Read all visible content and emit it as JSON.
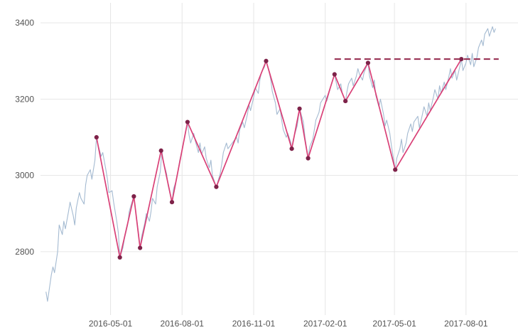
{
  "chart_data": {
    "type": "line",
    "title": "",
    "xlabel": "",
    "ylabel": "",
    "grid": true,
    "legend": "none",
    "x_domain": [
      "2016-02-01",
      "2017-10-05"
    ],
    "y_domain": [
      2645,
      3445
    ],
    "x_ticks": [
      "2016-05-01",
      "2016-08-01",
      "2016-11-01",
      "2017-02-01",
      "2017-05-01",
      "2017-08-01"
    ],
    "y_ticks": [
      2800,
      3000,
      3200,
      3400
    ],
    "colors": {
      "price_line": "#9fb6cf",
      "zigzag_line": "#d94077",
      "pivot_marker": "#7e2249",
      "resistance_line": "#993355",
      "gridline": "#e6e6e6",
      "tick_label": "#535353",
      "background": "#ffffff"
    },
    "series": [
      {
        "name": "price",
        "style": "line",
        "points": [
          [
            "2016-02-08",
            2695
          ],
          [
            "2016-02-10",
            2670
          ],
          [
            "2016-02-15",
            2740
          ],
          [
            "2016-02-17",
            2760
          ],
          [
            "2016-02-19",
            2745
          ],
          [
            "2016-02-23",
            2800
          ],
          [
            "2016-02-25",
            2870
          ],
          [
            "2016-02-29",
            2845
          ],
          [
            "2016-03-02",
            2880
          ],
          [
            "2016-03-04",
            2860
          ],
          [
            "2016-03-08",
            2905
          ],
          [
            "2016-03-10",
            2930
          ],
          [
            "2016-03-14",
            2895
          ],
          [
            "2016-03-16",
            2870
          ],
          [
            "2016-03-18",
            2915
          ],
          [
            "2016-03-22",
            2955
          ],
          [
            "2016-03-24",
            2940
          ],
          [
            "2016-03-28",
            2925
          ],
          [
            "2016-03-30",
            2975
          ],
          [
            "2016-04-01",
            3000
          ],
          [
            "2016-04-05",
            3015
          ],
          [
            "2016-04-07",
            2990
          ],
          [
            "2016-04-11",
            3040
          ],
          [
            "2016-04-13",
            3100
          ],
          [
            "2016-04-15",
            3080
          ],
          [
            "2016-04-19",
            3050
          ],
          [
            "2016-04-21",
            3060
          ],
          [
            "2016-04-25",
            3015
          ],
          [
            "2016-04-27",
            2990
          ],
          [
            "2016-04-29",
            2955
          ],
          [
            "2016-05-03",
            2960
          ],
          [
            "2016-05-05",
            2930
          ],
          [
            "2016-05-09",
            2880
          ],
          [
            "2016-05-11",
            2850
          ],
          [
            "2016-05-13",
            2785
          ],
          [
            "2016-05-17",
            2810
          ],
          [
            "2016-05-19",
            2835
          ],
          [
            "2016-05-23",
            2870
          ],
          [
            "2016-05-25",
            2905
          ],
          [
            "2016-05-27",
            2920
          ],
          [
            "2016-05-31",
            2945
          ],
          [
            "2016-06-02",
            2910
          ],
          [
            "2016-06-06",
            2850
          ],
          [
            "2016-06-08",
            2810
          ],
          [
            "2016-06-10",
            2840
          ],
          [
            "2016-06-14",
            2875
          ],
          [
            "2016-06-16",
            2900
          ],
          [
            "2016-06-20",
            2880
          ],
          [
            "2016-06-22",
            2905
          ],
          [
            "2016-06-24",
            2940
          ],
          [
            "2016-06-28",
            2925
          ],
          [
            "2016-06-30",
            2970
          ],
          [
            "2016-07-04",
            3010
          ],
          [
            "2016-07-06",
            3065
          ],
          [
            "2016-07-08",
            3035
          ],
          [
            "2016-07-12",
            3005
          ],
          [
            "2016-07-14",
            2975
          ],
          [
            "2016-07-19",
            2930
          ],
          [
            "2016-07-21",
            2965
          ],
          [
            "2016-07-25",
            2990
          ],
          [
            "2016-07-27",
            3015
          ],
          [
            "2016-07-29",
            3040
          ],
          [
            "2016-08-02",
            3075
          ],
          [
            "2016-08-04",
            3100
          ],
          [
            "2016-08-08",
            3140
          ],
          [
            "2016-08-10",
            3105
          ],
          [
            "2016-08-12",
            3085
          ],
          [
            "2016-08-16",
            3110
          ],
          [
            "2016-08-18",
            3090
          ],
          [
            "2016-08-22",
            3060
          ],
          [
            "2016-08-24",
            3085
          ],
          [
            "2016-08-26",
            3055
          ],
          [
            "2016-08-30",
            3075
          ],
          [
            "2016-09-01",
            3045
          ],
          [
            "2016-09-05",
            3020
          ],
          [
            "2016-09-07",
            3040
          ],
          [
            "2016-09-09",
            3000
          ],
          [
            "2016-09-14",
            2970
          ],
          [
            "2016-09-19",
            3005
          ],
          [
            "2016-09-21",
            3030
          ],
          [
            "2016-09-23",
            3060
          ],
          [
            "2016-09-27",
            3085
          ],
          [
            "2016-09-29",
            3070
          ],
          [
            "2016-10-10",
            3100
          ],
          [
            "2016-10-12",
            3085
          ],
          [
            "2016-10-14",
            3120
          ],
          [
            "2016-10-18",
            3140
          ],
          [
            "2016-10-20",
            3125
          ],
          [
            "2016-10-24",
            3160
          ],
          [
            "2016-10-26",
            3185
          ],
          [
            "2016-10-28",
            3170
          ],
          [
            "2016-11-01",
            3205
          ],
          [
            "2016-11-03",
            3230
          ],
          [
            "2016-11-07",
            3215
          ],
          [
            "2016-11-09",
            3250
          ],
          [
            "2016-11-11",
            3270
          ],
          [
            "2016-11-15",
            3285
          ],
          [
            "2016-11-17",
            3300
          ],
          [
            "2016-11-21",
            3270
          ],
          [
            "2016-11-23",
            3250
          ],
          [
            "2016-11-25",
            3220
          ],
          [
            "2016-11-29",
            3190
          ],
          [
            "2016-12-01",
            3160
          ],
          [
            "2016-12-05",
            3175
          ],
          [
            "2016-12-07",
            3145
          ],
          [
            "2016-12-09",
            3120
          ],
          [
            "2016-12-13",
            3100
          ],
          [
            "2016-12-15",
            3110
          ],
          [
            "2016-12-19",
            3085
          ],
          [
            "2016-12-20",
            3070
          ],
          [
            "2016-12-22",
            3095
          ],
          [
            "2016-12-27",
            3130
          ],
          [
            "2016-12-30",
            3175
          ],
          [
            "2017-01-04",
            3140
          ],
          [
            "2017-01-06",
            3100
          ],
          [
            "2017-01-10",
            3045
          ],
          [
            "2017-01-12",
            3075
          ],
          [
            "2017-01-16",
            3095
          ],
          [
            "2017-01-18",
            3120
          ],
          [
            "2017-01-20",
            3145
          ],
          [
            "2017-01-24",
            3165
          ],
          [
            "2017-01-26",
            3190
          ],
          [
            "2017-02-01",
            3210
          ],
          [
            "2017-02-03",
            3195
          ],
          [
            "2017-02-07",
            3225
          ],
          [
            "2017-02-09",
            3240
          ],
          [
            "2017-02-13",
            3265
          ],
          [
            "2017-02-15",
            3245
          ],
          [
            "2017-02-17",
            3225
          ],
          [
            "2017-02-21",
            3240
          ],
          [
            "2017-02-23",
            3215
          ],
          [
            "2017-02-27",
            3195
          ],
          [
            "2017-03-01",
            3220
          ],
          [
            "2017-03-03",
            3240
          ],
          [
            "2017-03-07",
            3255
          ],
          [
            "2017-03-09",
            3235
          ],
          [
            "2017-03-13",
            3260
          ],
          [
            "2017-03-15",
            3280
          ],
          [
            "2017-03-17",
            3265
          ],
          [
            "2017-03-21",
            3250
          ],
          [
            "2017-03-23",
            3270
          ],
          [
            "2017-03-28",
            3295
          ],
          [
            "2017-03-30",
            3260
          ],
          [
            "2017-04-03",
            3230
          ],
          [
            "2017-04-05",
            3250
          ],
          [
            "2017-04-07",
            3210
          ],
          [
            "2017-04-11",
            3180
          ],
          [
            "2017-04-13",
            3200
          ],
          [
            "2017-04-17",
            3160
          ],
          [
            "2017-04-19",
            3130
          ],
          [
            "2017-04-21",
            3145
          ],
          [
            "2017-04-25",
            3110
          ],
          [
            "2017-04-27",
            3080
          ],
          [
            "2017-05-02",
            3015
          ],
          [
            "2017-05-04",
            3045
          ],
          [
            "2017-05-08",
            3070
          ],
          [
            "2017-05-10",
            3095
          ],
          [
            "2017-05-12",
            3060
          ],
          [
            "2017-05-16",
            3085
          ],
          [
            "2017-05-18",
            3110
          ],
          [
            "2017-05-22",
            3135
          ],
          [
            "2017-05-24",
            3115
          ],
          [
            "2017-05-26",
            3140
          ],
          [
            "2017-05-31",
            3155
          ],
          [
            "2017-06-02",
            3125
          ],
          [
            "2017-06-06",
            3160
          ],
          [
            "2017-06-08",
            3180
          ],
          [
            "2017-06-12",
            3155
          ],
          [
            "2017-06-14",
            3190
          ],
          [
            "2017-06-16",
            3170
          ],
          [
            "2017-06-20",
            3205
          ],
          [
            "2017-06-22",
            3225
          ],
          [
            "2017-06-26",
            3200
          ],
          [
            "2017-06-28",
            3235
          ],
          [
            "2017-06-30",
            3215
          ],
          [
            "2017-07-04",
            3245
          ],
          [
            "2017-07-06",
            3225
          ],
          [
            "2017-07-10",
            3260
          ],
          [
            "2017-07-12",
            3280
          ],
          [
            "2017-07-14",
            3255
          ],
          [
            "2017-07-18",
            3275
          ],
          [
            "2017-07-20",
            3250
          ],
          [
            "2017-07-24",
            3285
          ],
          [
            "2017-07-26",
            3305
          ],
          [
            "2017-07-28",
            3275
          ],
          [
            "2017-08-01",
            3295
          ],
          [
            "2017-08-03",
            3315
          ],
          [
            "2017-08-07",
            3290
          ],
          [
            "2017-08-09",
            3320
          ],
          [
            "2017-08-11",
            3285
          ],
          [
            "2017-08-15",
            3310
          ],
          [
            "2017-08-17",
            3335
          ],
          [
            "2017-08-21",
            3355
          ],
          [
            "2017-08-23",
            3340
          ],
          [
            "2017-08-25",
            3370
          ],
          [
            "2017-08-29",
            3385
          ],
          [
            "2017-08-31",
            3365
          ],
          [
            "2017-09-04",
            3390
          ],
          [
            "2017-09-06",
            3375
          ],
          [
            "2017-09-08",
            3385
          ]
        ]
      },
      {
        "name": "zigzag",
        "style": "line+markers",
        "points": [
          [
            "2016-04-13",
            3100
          ],
          [
            "2016-05-13",
            2785
          ],
          [
            "2016-05-31",
            2945
          ],
          [
            "2016-06-08",
            2810
          ],
          [
            "2016-07-05",
            3065
          ],
          [
            "2016-07-19",
            2930
          ],
          [
            "2016-08-08",
            3140
          ],
          [
            "2016-09-14",
            2970
          ],
          [
            "2016-11-17",
            3300
          ],
          [
            "2016-12-20",
            3070
          ],
          [
            "2016-12-30",
            3175
          ],
          [
            "2017-01-10",
            3045
          ],
          [
            "2017-02-13",
            3265
          ],
          [
            "2017-02-27",
            3195
          ],
          [
            "2017-03-28",
            3295
          ],
          [
            "2017-05-02",
            3015
          ],
          [
            "2017-07-26",
            3305
          ]
        ]
      },
      {
        "name": "resistance",
        "style": "dashed-horizontal",
        "level": 3305,
        "start": "2017-02-13",
        "end": "2017-09-12"
      }
    ]
  }
}
